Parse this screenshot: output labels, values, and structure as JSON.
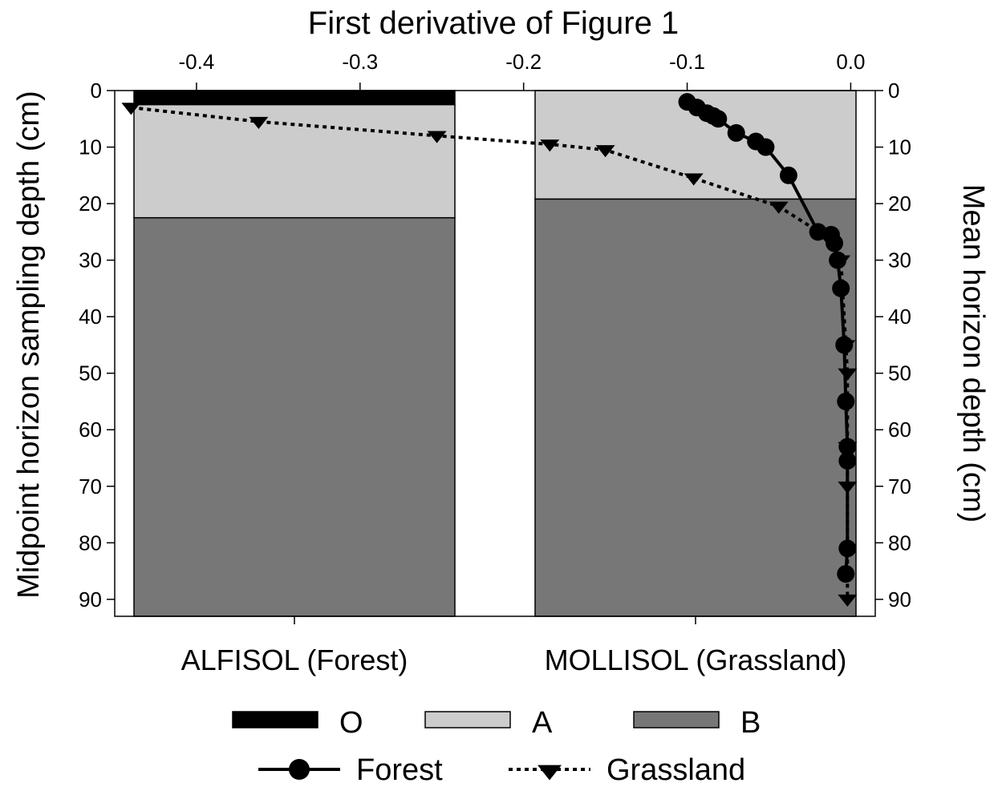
{
  "chart_data": {
    "type": "line",
    "title": "First derivative of Figure 1",
    "xlabel": "",
    "ylabel_left": "Midpoint horizon sampling depth (cm)",
    "ylabel_right": "Mean horizon depth (cm)",
    "x_top_range": [
      -0.45,
      0.015
    ],
    "x_top_ticks": [
      -0.4,
      -0.3,
      -0.2,
      -0.1,
      0.0
    ],
    "x_top_tick_labels": [
      "-0.4",
      "-0.3",
      "-0.2",
      "-0.1",
      "0.0"
    ],
    "y_range": [
      0,
      93
    ],
    "y_inverted": true,
    "y_ticks": [
      0,
      10,
      20,
      30,
      40,
      50,
      60,
      70,
      80,
      90
    ],
    "y_tick_labels": [
      "0",
      "10",
      "20",
      "30",
      "40",
      "50",
      "60",
      "70",
      "80",
      "90"
    ],
    "soil_categories": [
      {
        "label": "ALFISOL (Forest)",
        "horizons": [
          {
            "name": "O",
            "top": 0,
            "bottom": 2.5
          },
          {
            "name": "A",
            "top": 2.5,
            "bottom": 22.5
          },
          {
            "name": "B",
            "top": 22.5,
            "bottom": 93
          }
        ]
      },
      {
        "label": "MOLLISOL (Grassland)",
        "horizons": [
          {
            "name": "A",
            "top": 0,
            "bottom": 19.2
          },
          {
            "name": "B",
            "top": 19.2,
            "bottom": 93
          }
        ]
      }
    ],
    "horizon_colors": {
      "O": "#000000",
      "A": "#cccccc",
      "B": "#777777"
    },
    "series": [
      {
        "name": "Forest",
        "line_style": "solid",
        "marker": "circle",
        "x": [
          -0.1,
          -0.094,
          -0.088,
          -0.084,
          -0.081,
          -0.07,
          -0.058,
          -0.052,
          -0.038,
          -0.02,
          -0.012,
          -0.01,
          -0.008,
          -0.006,
          -0.004,
          -0.003,
          -0.002,
          -0.002,
          -0.002,
          -0.003
        ],
        "y": [
          2,
          3,
          4,
          4.5,
          5,
          7.5,
          9,
          10,
          15,
          25,
          25.5,
          27,
          30,
          35,
          45,
          55,
          63,
          65.5,
          81,
          85.5
        ]
      },
      {
        "name": "Grassland",
        "line_style": "dotted",
        "marker": "triangle-down",
        "x": [
          -0.44,
          -0.362,
          -0.253,
          -0.184,
          -0.15,
          -0.096,
          -0.044,
          -0.014,
          -0.006,
          -0.003,
          -0.002,
          -0.002,
          -0.002,
          -0.002
        ],
        "y": [
          3,
          5.5,
          8,
          9.5,
          10.5,
          15.5,
          20.5,
          26,
          30,
          45,
          50,
          63,
          70,
          90
        ]
      }
    ],
    "legend": {
      "placement": "bottom",
      "horizon_entries": [
        {
          "label": "O",
          "color": "#000000"
        },
        {
          "label": "A",
          "color": "#cccccc"
        },
        {
          "label": "B",
          "color": "#777777"
        }
      ],
      "series_entries": [
        {
          "label": "Forest",
          "line_style": "solid",
          "marker": "circle"
        },
        {
          "label": "Grassland",
          "line_style": "dotted",
          "marker": "triangle-down"
        }
      ]
    }
  }
}
